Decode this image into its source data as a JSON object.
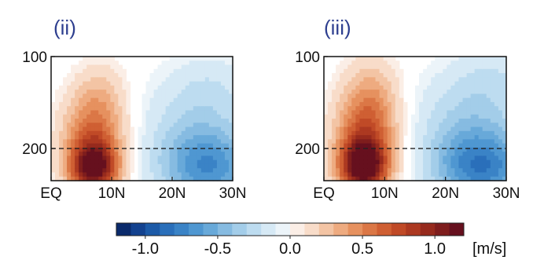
{
  "chart_data": [
    {
      "type": "heatmap",
      "panel_label": "(ii)",
      "x_ticks": [
        "EQ",
        "10N",
        "20N",
        "30N"
      ],
      "x_tick_values": [
        0,
        10,
        20,
        30
      ],
      "xlim": [
        0,
        30
      ],
      "y_ticks": [
        "100",
        "200"
      ],
      "y_tick_values": [
        100,
        200
      ],
      "ylim": [
        100,
        235
      ],
      "y_axis": "pressure, increasing downward",
      "reference_line": {
        "y": 200,
        "style": "dashed"
      },
      "features": [
        {
          "kind": "positive",
          "lat": 7,
          "p": 222,
          "value": 1.1,
          "lat_halfwidth": 4,
          "p_halfwidth": 28
        },
        {
          "kind": "positive",
          "lat": 7,
          "p": 185,
          "value": 0.55,
          "lat_halfwidth": 5,
          "p_halfwidth": 40
        },
        {
          "kind": "positive",
          "lat": 8,
          "p": 140,
          "value": 0.2,
          "lat_halfwidth": 4.5,
          "p_halfwidth": 35
        },
        {
          "kind": "negative",
          "lat": 26,
          "p": 222,
          "value": -0.6,
          "lat_halfwidth": 8,
          "p_halfwidth": 40
        },
        {
          "kind": "negative",
          "lat": 24,
          "p": 175,
          "value": -0.25,
          "lat_halfwidth": 9,
          "p_halfwidth": 55
        },
        {
          "kind": "negative",
          "lat": 27,
          "p": 130,
          "value": -0.1,
          "lat_halfwidth": 7,
          "p_halfwidth": 35
        }
      ]
    },
    {
      "type": "heatmap",
      "panel_label": "(iii)",
      "x_ticks": [
        "EQ",
        "10N",
        "20N",
        "30N"
      ],
      "x_tick_values": [
        0,
        10,
        20,
        30
      ],
      "xlim": [
        0,
        30
      ],
      "y_ticks": [
        "100",
        "200"
      ],
      "y_tick_values": [
        100,
        200
      ],
      "ylim": [
        100,
        235
      ],
      "y_axis": "pressure, increasing downward",
      "reference_line": {
        "y": 200,
        "style": "dashed"
      },
      "features": [
        {
          "kind": "positive",
          "lat": 6.5,
          "p": 220,
          "value": 1.2,
          "lat_halfwidth": 4,
          "p_halfwidth": 30
        },
        {
          "kind": "positive",
          "lat": 7,
          "p": 180,
          "value": 0.6,
          "lat_halfwidth": 5,
          "p_halfwidth": 45
        },
        {
          "kind": "positive",
          "lat": 8,
          "p": 135,
          "value": 0.2,
          "lat_halfwidth": 4.5,
          "p_halfwidth": 40
        },
        {
          "kind": "negative",
          "lat": 26,
          "p": 222,
          "value": -0.7,
          "lat_halfwidth": 8,
          "p_halfwidth": 40
        },
        {
          "kind": "negative",
          "lat": 24,
          "p": 170,
          "value": -0.3,
          "lat_halfwidth": 9,
          "p_halfwidth": 55
        },
        {
          "kind": "negative",
          "lat": 28,
          "p": 120,
          "value": -0.12,
          "lat_halfwidth": 6,
          "p_halfwidth": 35
        }
      ]
    }
  ],
  "colorbar": {
    "vmin": -1.2,
    "vmax": 1.2,
    "levels": 24,
    "tick_values": [
      -1.0,
      -0.5,
      0.0,
      0.5,
      1.0
    ],
    "tick_labels": [
      "-1.0",
      "-0.5",
      "0.0",
      "0.5",
      "1.0"
    ],
    "unit": "[m/s]",
    "colors": [
      "#0a2a6b",
      "#13428f",
      "#1c5aa7",
      "#2a6fba",
      "#3a83c6",
      "#4f97d1",
      "#68a9d9",
      "#86bbe1",
      "#a3cde9",
      "#bddcf0",
      "#d6e9f5",
      "#ecf4f9",
      "#fbeee6",
      "#f8dcc9",
      "#f3c4a4",
      "#eeab80",
      "#e6915f",
      "#db7746",
      "#cf5f33",
      "#c04a27",
      "#ac3921",
      "#962a1d",
      "#7e1d1d",
      "#66101e"
    ]
  }
}
